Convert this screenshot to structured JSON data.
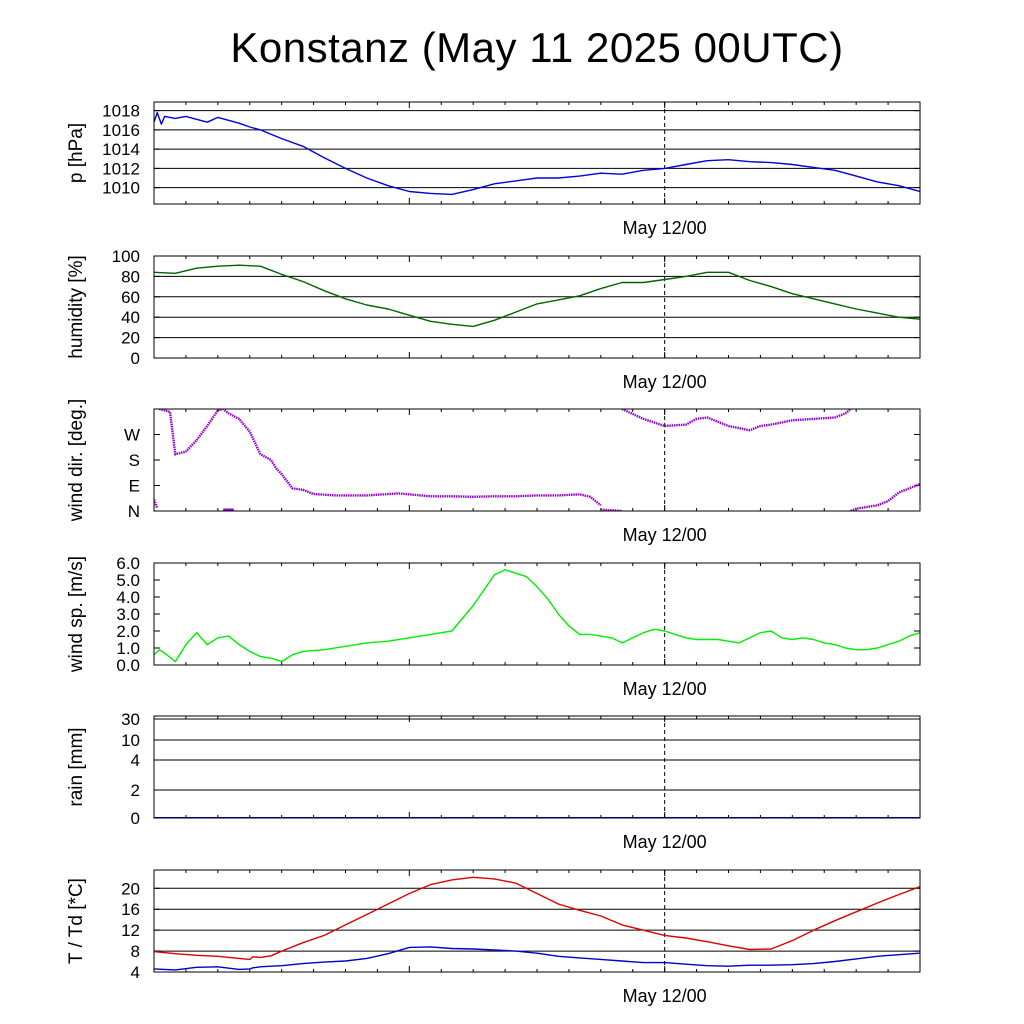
{
  "title": "Konstanz (May 11 2025 00UTC)",
  "colors": {
    "pressure": "#0000dd",
    "humidity": "#006400",
    "wind_dir": "#9400d3",
    "wind_speed": "#00ee00",
    "rain": "#0000dd",
    "temperature": "#dd0000",
    "dewpoint": "#0000cc",
    "frame": "#000000"
  },
  "x_tick_label": "May 12/00",
  "chart_data": [
    {
      "id": "pressure",
      "type": "line",
      "ylabel": "p [hPa]",
      "ylim": [
        1008.3,
        1018.9
      ],
      "yticks": [
        1010,
        1012,
        1014,
        1016,
        1018
      ],
      "ytick_labels": [
        "1010",
        "1012",
        "1014",
        "1016",
        "1018"
      ],
      "grid": true,
      "x_hours": [
        0,
        0.3,
        0.7,
        1,
        2,
        3,
        4,
        5,
        6,
        7,
        8,
        9,
        10,
        12,
        14,
        16,
        18,
        20,
        22,
        24,
        26,
        28,
        30,
        32,
        34,
        36,
        38,
        40,
        42,
        44,
        46,
        48,
        50,
        52,
        54,
        56,
        58,
        60,
        62,
        64,
        66,
        68,
        70,
        72
      ],
      "series": [
        {
          "values": [
            1016.8,
            1017.8,
            1016.6,
            1017.4,
            1017.2,
            1017.4,
            1017.1,
            1016.8,
            1017.3,
            1017.0,
            1016.7,
            1016.3,
            1016.0,
            1015.1,
            1014.3,
            1013.1,
            1012.0,
            1011.0,
            1010.2,
            1009.6,
            1009.4,
            1009.3,
            1009.8,
            1010.4,
            1010.7,
            1011.0,
            1011.0,
            1011.2,
            1011.5,
            1011.4,
            1011.8,
            1012.0,
            1012.4,
            1012.8,
            1012.9,
            1012.7,
            1012.6,
            1012.4,
            1012.1,
            1011.8,
            1011.2,
            1010.6,
            1010.2,
            1009.6
          ]
        }
      ]
    },
    {
      "id": "humidity",
      "type": "line",
      "ylabel": "humidity [%]",
      "ylim": [
        0,
        100
      ],
      "yticks": [
        0,
        20,
        40,
        60,
        80,
        100
      ],
      "ytick_labels": [
        "0",
        "20",
        "40",
        "60",
        "80",
        "100"
      ],
      "grid": true,
      "x_hours": [
        0,
        2,
        4,
        6,
        8,
        10,
        12,
        14,
        16,
        18,
        20,
        22,
        24,
        26,
        28,
        30,
        32,
        34,
        36,
        38,
        40,
        42,
        44,
        46,
        48,
        50,
        52,
        54,
        56,
        58,
        60,
        62,
        64,
        66,
        68,
        70,
        72
      ],
      "series": [
        {
          "values": [
            84,
            83,
            88,
            90,
            91,
            90,
            82,
            75,
            66,
            58,
            52,
            48,
            42,
            36,
            33,
            31,
            37,
            45,
            53,
            57,
            61,
            68,
            74,
            74,
            77,
            80,
            84,
            84,
            76,
            70,
            63,
            58,
            53,
            48,
            44,
            40,
            38
          ]
        }
      ]
    },
    {
      "id": "wind_direction",
      "type": "scatter",
      "ylabel": "wind dir. [deg.]",
      "ylim": [
        0,
        360
      ],
      "yticks": [
        0,
        90,
        180,
        270
      ],
      "ytick_labels": [
        "N",
        "E",
        "S",
        "W"
      ],
      "grid": false,
      "segments": [
        {
          "x": [
            0.0,
            0.3
          ],
          "values": [
            40,
            10
          ]
        },
        {
          "x": [
            0.5,
            1.5,
            2.0,
            3.0,
            4.0,
            5.0,
            6.0,
            6.5,
            7.0,
            8.0,
            9.0,
            10.0,
            11.0,
            11.5,
            12.0,
            13.0,
            14.0
          ],
          "values": [
            360,
            350,
            200,
            210,
            250,
            300,
            355,
            360,
            345,
            325,
            280,
            200,
            180,
            150,
            130,
            80,
            75
          ]
        },
        {
          "x": [
            14.0,
            15.0,
            17.0,
            20.0,
            23.0,
            26.0,
            28.0,
            30.0,
            32.0,
            34.0,
            36.0,
            38.0,
            40.0,
            41.0,
            42.0
          ],
          "values": [
            75,
            60,
            55,
            55,
            62,
            52,
            52,
            50,
            52,
            52,
            55,
            55,
            59,
            50,
            20
          ]
        },
        {
          "x": [
            42.0,
            44.0
          ],
          "values": [
            5,
            0
          ]
        },
        {
          "x": [
            44.0,
            46.0,
            48.0,
            50.0,
            51.0,
            52.0,
            54.0,
            56.0,
            57.0,
            58.0,
            60.0,
            62.0,
            64.0,
            65.0,
            65.5
          ],
          "values": [
            360,
            325,
            300,
            305,
            325,
            330,
            300,
            285,
            300,
            305,
            320,
            325,
            330,
            345,
            360
          ]
        },
        {
          "x": [
            65.5,
            66.0,
            68.0,
            69.0,
            70.0,
            72.0
          ],
          "values": [
            0,
            8,
            20,
            35,
            65,
            95
          ]
        }
      ],
      "lim_segments": [
        {
          "x": [
            6.5,
            7.5
          ],
          "values": [
            0,
            0
          ]
        }
      ]
    },
    {
      "id": "wind_speed",
      "type": "line",
      "ylabel": "wind sp. [m/s]",
      "ylim": [
        0,
        6
      ],
      "yticks": [
        0,
        1,
        2,
        3,
        4,
        5,
        6
      ],
      "ytick_labels": [
        "0.0",
        "1.0",
        "2.0",
        "3.0",
        "4.0",
        "5.0",
        "6.0"
      ],
      "grid": false,
      "x_hours": [
        0,
        0.5,
        1,
        2,
        3,
        4,
        5,
        6,
        7,
        8,
        9,
        10,
        11,
        12,
        13,
        14,
        16,
        18,
        20,
        22,
        24,
        26,
        28,
        30,
        32,
        33,
        34,
        35,
        36,
        37,
        38,
        39,
        40,
        41,
        42,
        43,
        44,
        45,
        46,
        47,
        48,
        49,
        50,
        51,
        52,
        53,
        54,
        55,
        56,
        57,
        58,
        59,
        60,
        61,
        62,
        63,
        64,
        65,
        66,
        67,
        68,
        69,
        70,
        71,
        72
      ],
      "series": [
        {
          "values": [
            0.6,
            0.9,
            0.7,
            0.2,
            1.2,
            1.9,
            1.2,
            1.6,
            1.7,
            1.2,
            0.8,
            0.5,
            0.4,
            0.2,
            0.6,
            0.8,
            0.9,
            1.1,
            1.3,
            1.4,
            1.6,
            1.8,
            2.0,
            3.5,
            5.3,
            5.6,
            5.4,
            5.2,
            4.6,
            3.9,
            3.0,
            2.3,
            1.8,
            1.8,
            1.7,
            1.6,
            1.3,
            1.6,
            1.9,
            2.1,
            2.0,
            1.8,
            1.6,
            1.5,
            1.5,
            1.5,
            1.4,
            1.3,
            1.6,
            1.9,
            2.0,
            1.6,
            1.5,
            1.6,
            1.5,
            1.3,
            1.2,
            1.0,
            0.9,
            0.9,
            1.0,
            1.2,
            1.4,
            1.7,
            1.9
          ]
        }
      ]
    },
    {
      "id": "rain",
      "type": "line",
      "ylabel": "rain [mm]",
      "ylim": [
        0,
        30
      ],
      "yticks": [
        0,
        2,
        4,
        10,
        30
      ],
      "ytick_labels": [
        "0",
        "2",
        "4",
        "10",
        "30"
      ],
      "scale_note": "non-linear",
      "grid": true,
      "x_hours": [
        0,
        72
      ],
      "series": [
        {
          "values": [
            0,
            0
          ]
        }
      ]
    },
    {
      "id": "temperature",
      "type": "line",
      "ylabel": "T / Td [*C]",
      "ylim": [
        4,
        23.5
      ],
      "yticks": [
        4,
        8,
        12,
        16,
        20
      ],
      "ytick_labels": [
        "4",
        "8",
        "12",
        "16",
        "20"
      ],
      "grid": true,
      "x_hours": [
        0,
        2,
        4,
        6,
        8,
        9,
        9.3,
        10,
        11,
        12,
        14,
        16,
        18,
        20,
        22,
        24,
        26,
        28,
        30,
        32,
        34,
        36,
        38,
        40,
        42,
        44,
        46,
        48,
        50,
        52,
        54,
        56,
        58,
        60,
        62,
        64,
        66,
        68,
        70,
        72
      ],
      "series": [
        {
          "name": "T",
          "values": [
            7.9,
            7.5,
            7.2,
            7.0,
            6.6,
            6.4,
            6.9,
            6.8,
            7.1,
            8.0,
            9.6,
            11.0,
            13.0,
            15.0,
            17.0,
            19.0,
            20.7,
            21.6,
            22.1,
            21.8,
            21.0,
            19.0,
            17.0,
            15.8,
            14.7,
            13.0,
            12.0,
            11.0,
            10.5,
            9.8,
            9.0,
            8.3,
            8.4,
            10.0,
            12.0,
            13.8,
            15.5,
            17.2,
            18.8,
            20.3
          ]
        },
        {
          "name": "Td",
          "values": [
            4.6,
            4.4,
            4.9,
            5.0,
            4.5,
            4.6,
            4.8,
            5.0,
            5.1,
            5.2,
            5.6,
            5.9,
            6.1,
            6.6,
            7.5,
            8.7,
            8.8,
            8.5,
            8.4,
            8.2,
            8.0,
            7.6,
            7.0,
            6.7,
            6.4,
            6.1,
            5.8,
            5.8,
            5.5,
            5.2,
            5.1,
            5.3,
            5.3,
            5.4,
            5.6,
            6.0,
            6.5,
            7.0,
            7.3,
            7.6
          ]
        }
      ]
    }
  ]
}
